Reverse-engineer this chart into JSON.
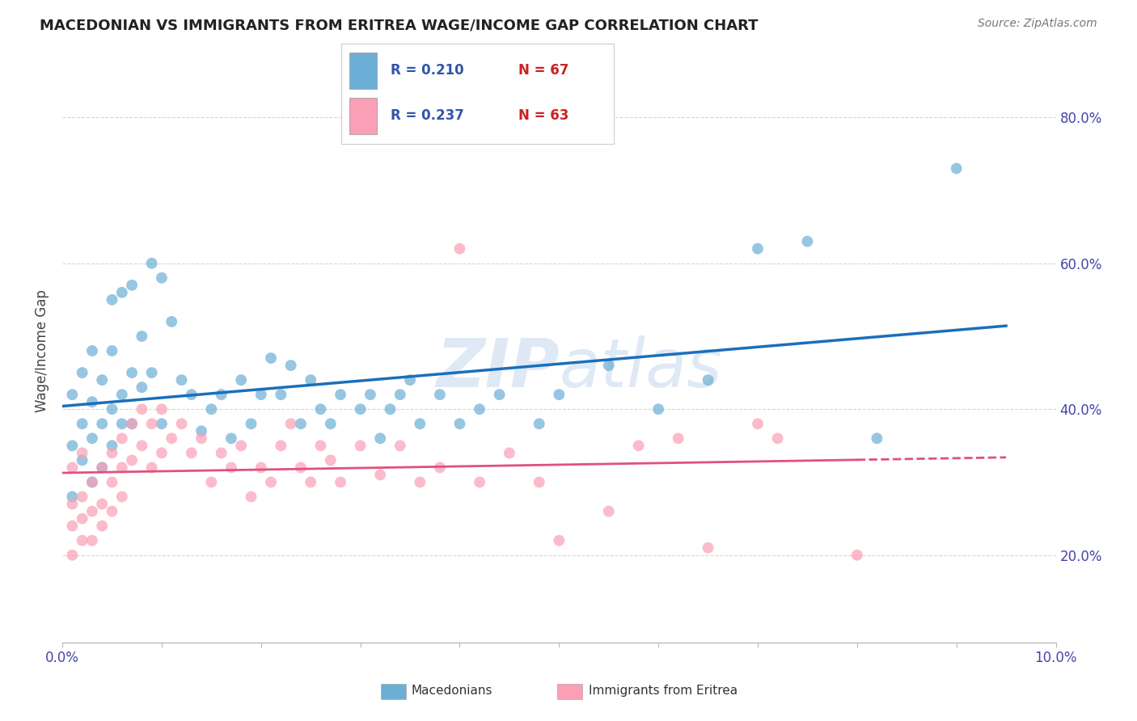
{
  "title": "MACEDONIAN VS IMMIGRANTS FROM ERITREA WAGE/INCOME GAP CORRELATION CHART",
  "source": "Source: ZipAtlas.com",
  "ylabel": "Wage/Income Gap",
  "xlim": [
    0.0,
    0.1
  ],
  "ylim": [
    0.08,
    0.88
  ],
  "xticks": [
    0.0,
    0.01,
    0.02,
    0.03,
    0.04,
    0.05,
    0.06,
    0.07,
    0.08,
    0.09,
    0.1
  ],
  "xticklabels": [
    "0.0%",
    "",
    "",
    "",
    "",
    "",
    "",
    "",
    "",
    "",
    "10.0%"
  ],
  "ytick_positions": [
    0.2,
    0.4,
    0.6,
    0.8
  ],
  "ytick_labels": [
    "20.0%",
    "40.0%",
    "60.0%",
    "80.0%"
  ],
  "watermark": "ZIPAtlas",
  "legend1_R": "R = 0.210",
  "legend1_N": "N = 67",
  "legend2_R": "R = 0.237",
  "legend2_N": "N = 63",
  "legend1_label": "Macedonians",
  "legend2_label": "Immigrants from Eritrea",
  "blue_color": "#6baed6",
  "pink_color": "#fa9fb5",
  "blue_line_color": "#1a6fba",
  "pink_line_color": "#e05080",
  "background_color": "#ffffff",
  "grid_color": "#cccccc",
  "blue_scatter_x": [
    0.001,
    0.001,
    0.001,
    0.002,
    0.002,
    0.002,
    0.003,
    0.003,
    0.003,
    0.003,
    0.004,
    0.004,
    0.004,
    0.005,
    0.005,
    0.005,
    0.005,
    0.006,
    0.006,
    0.006,
    0.007,
    0.007,
    0.007,
    0.008,
    0.008,
    0.009,
    0.009,
    0.01,
    0.01,
    0.011,
    0.012,
    0.013,
    0.014,
    0.015,
    0.016,
    0.017,
    0.018,
    0.019,
    0.02,
    0.021,
    0.022,
    0.023,
    0.024,
    0.025,
    0.026,
    0.027,
    0.028,
    0.03,
    0.031,
    0.032,
    0.033,
    0.034,
    0.035,
    0.036,
    0.038,
    0.04,
    0.042,
    0.044,
    0.048,
    0.05,
    0.055,
    0.06,
    0.065,
    0.07,
    0.075,
    0.082,
    0.09
  ],
  "blue_scatter_y": [
    0.35,
    0.42,
    0.28,
    0.38,
    0.33,
    0.45,
    0.36,
    0.41,
    0.3,
    0.48,
    0.38,
    0.44,
    0.32,
    0.55,
    0.48,
    0.4,
    0.35,
    0.56,
    0.42,
    0.38,
    0.57,
    0.45,
    0.38,
    0.5,
    0.43,
    0.6,
    0.45,
    0.58,
    0.38,
    0.52,
    0.44,
    0.42,
    0.37,
    0.4,
    0.42,
    0.36,
    0.44,
    0.38,
    0.42,
    0.47,
    0.42,
    0.46,
    0.38,
    0.44,
    0.4,
    0.38,
    0.42,
    0.4,
    0.42,
    0.36,
    0.4,
    0.42,
    0.44,
    0.38,
    0.42,
    0.38,
    0.4,
    0.42,
    0.38,
    0.42,
    0.46,
    0.4,
    0.44,
    0.62,
    0.63,
    0.36,
    0.73
  ],
  "pink_scatter_x": [
    0.001,
    0.001,
    0.001,
    0.001,
    0.002,
    0.002,
    0.002,
    0.002,
    0.003,
    0.003,
    0.003,
    0.004,
    0.004,
    0.004,
    0.005,
    0.005,
    0.005,
    0.006,
    0.006,
    0.006,
    0.007,
    0.007,
    0.008,
    0.008,
    0.009,
    0.009,
    0.01,
    0.01,
    0.011,
    0.012,
    0.013,
    0.014,
    0.015,
    0.016,
    0.017,
    0.018,
    0.019,
    0.02,
    0.021,
    0.022,
    0.023,
    0.024,
    0.025,
    0.026,
    0.027,
    0.028,
    0.03,
    0.032,
    0.034,
    0.036,
    0.038,
    0.04,
    0.042,
    0.045,
    0.048,
    0.05,
    0.055,
    0.058,
    0.062,
    0.065,
    0.07,
    0.072,
    0.08
  ],
  "pink_scatter_y": [
    0.27,
    0.32,
    0.24,
    0.2,
    0.28,
    0.34,
    0.25,
    0.22,
    0.3,
    0.26,
    0.22,
    0.32,
    0.27,
    0.24,
    0.34,
    0.3,
    0.26,
    0.36,
    0.32,
    0.28,
    0.38,
    0.33,
    0.4,
    0.35,
    0.38,
    0.32,
    0.4,
    0.34,
    0.36,
    0.38,
    0.34,
    0.36,
    0.3,
    0.34,
    0.32,
    0.35,
    0.28,
    0.32,
    0.3,
    0.35,
    0.38,
    0.32,
    0.3,
    0.35,
    0.33,
    0.3,
    0.35,
    0.31,
    0.35,
    0.3,
    0.32,
    0.62,
    0.3,
    0.34,
    0.3,
    0.22,
    0.26,
    0.35,
    0.36,
    0.21,
    0.38,
    0.36,
    0.2
  ]
}
